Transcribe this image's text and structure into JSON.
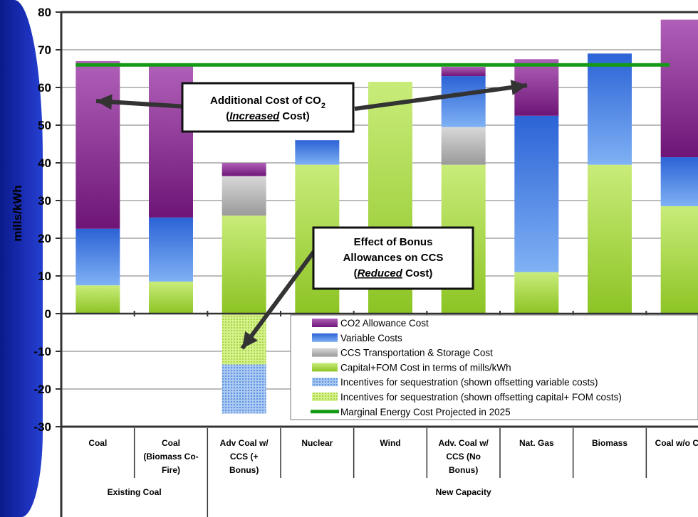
{
  "chart_data": {
    "type": "bar",
    "stacked": true,
    "ylabel": "mills/kWh",
    "ylim": [
      -30,
      80
    ],
    "yticks": [
      -30,
      -20,
      -10,
      0,
      10,
      20,
      30,
      40,
      50,
      60,
      70,
      80
    ],
    "grid": true,
    "legend_placement": "bottom-right",
    "categories": [
      [
        "Coal"
      ],
      [
        "Coal",
        "(Biomass Co-",
        "Fire)"
      ],
      [
        "Adv Coal w/",
        "CCS (+",
        "Bonus)"
      ],
      [
        "Nuclear"
      ],
      [
        "Wind"
      ],
      [
        "Adv. Coal w/",
        "CCS (No",
        "Bonus)"
      ],
      [
        "Nat. Gas"
      ],
      [
        "Biomass"
      ],
      [
        "Coal w/o CCS"
      ]
    ],
    "groups": [
      {
        "label": "Existing Coal",
        "span": [
          0,
          1
        ]
      },
      {
        "label": "New Capacity",
        "span": [
          2,
          8
        ]
      }
    ],
    "series": [
      {
        "name": "Capital+FOM Cost in terms of mills/kWh",
        "color": "#9fd23a",
        "values": [
          7.5,
          8.5,
          26,
          39.5,
          61.5,
          39.5,
          11,
          39.5,
          28.5
        ]
      },
      {
        "name": "CCS Transportation & Storage Cost",
        "color": "#a9a9a9",
        "values": [
          0,
          0,
          10.5,
          0,
          0,
          10,
          0,
          0,
          0
        ]
      },
      {
        "name": "Variable Costs",
        "color": "#3f7fe0",
        "values": [
          15,
          17,
          0,
          6.5,
          0,
          13.5,
          41.5,
          29.5,
          13
        ]
      },
      {
        "name": "CO2 Allowance Cost",
        "color": "#8a2a8e",
        "values": [
          44.5,
          40.5,
          3.5,
          0,
          0,
          2.5,
          15,
          0,
          36.5
        ]
      },
      {
        "name": "Incentives for sequestration (shown offsetting capital+ FOM costs)",
        "color": "#b5e05a",
        "values": [
          0,
          0,
          -13.5,
          0,
          0,
          0,
          0,
          0,
          0
        ]
      },
      {
        "name": "Incentives for sequestration (shown offsetting variable costs)",
        "color": "#6fa3e8",
        "values": [
          0,
          0,
          -13,
          0,
          0,
          0,
          0,
          0,
          0
        ]
      }
    ],
    "reference_line": {
      "name": "Marginal Energy Cost Projected in 2025",
      "value": 66,
      "color": "#159a15"
    },
    "legend_order": [
      3,
      2,
      1,
      0,
      5,
      4
    ],
    "annotations": [
      {
        "lines": [
          "Additional Cost of CO2",
          "(Increased Cost)"
        ]
      },
      {
        "lines": [
          "Effect of Bonus",
          "Allowances on CCS",
          "(Reduced Cost)"
        ]
      }
    ]
  }
}
